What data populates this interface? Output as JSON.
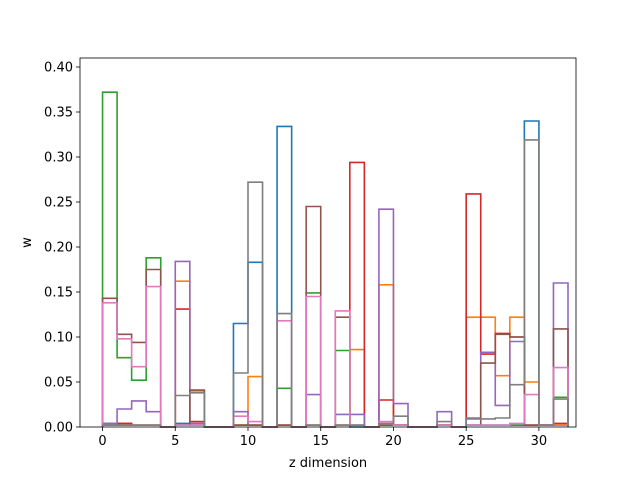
{
  "chart_data": {
    "type": "line",
    "style": "step-histogram",
    "title": "",
    "xlabel": "z dimension",
    "ylabel": "w",
    "xlim": [
      -1.55,
      32.55
    ],
    "ylim": [
      0,
      0.41
    ],
    "xticks": [
      0,
      5,
      10,
      15,
      20,
      25,
      30
    ],
    "yticks": [
      0.0,
      0.05,
      0.1,
      0.15,
      0.2,
      0.25,
      0.3,
      0.35,
      0.4
    ],
    "xtick_labels": [
      "0",
      "5",
      "10",
      "15",
      "20",
      "25",
      "30"
    ],
    "ytick_labels": [
      "0.00",
      "0.05",
      "0.10",
      "0.15",
      "0.20",
      "0.25",
      "0.30",
      "0.35",
      "0.40"
    ],
    "grid": false,
    "legend": "none",
    "bins": [
      0,
      1,
      2,
      3,
      4,
      5,
      6,
      7,
      8,
      9,
      10,
      11,
      12,
      13,
      14,
      15,
      16,
      17,
      18,
      19,
      20,
      21,
      22,
      23,
      24,
      25,
      26,
      27,
      28,
      29,
      30,
      31
    ],
    "series": [
      {
        "color": "#1f77b4",
        "values": [
          0.004,
          0.004,
          0.002,
          0.002,
          0,
          0.004,
          0.002,
          0,
          0,
          0.115,
          0.183,
          0,
          0.334,
          0,
          0.002,
          0,
          0.002,
          0,
          0,
          0.002,
          0.002,
          0,
          0,
          0.002,
          0,
          0.002,
          0.002,
          0.002,
          0.002,
          0.34,
          0.002,
          0.002
        ]
      },
      {
        "color": "#ff7f0e",
        "values": [
          0.002,
          0.004,
          0.002,
          0.002,
          0,
          0.162,
          0.04,
          0,
          0,
          0.002,
          0.056,
          0,
          0.002,
          0,
          0.002,
          0,
          0.002,
          0.086,
          0,
          0.158,
          0.002,
          0,
          0,
          0.002,
          0,
          0.122,
          0.122,
          0.057,
          0.122,
          0.05,
          0.002,
          0.002
        ]
      },
      {
        "color": "#2ca02c",
        "values": [
          0.372,
          0.077,
          0.052,
          0.188,
          0,
          0.002,
          0.002,
          0,
          0,
          0.002,
          0.002,
          0,
          0.043,
          0,
          0.149,
          0,
          0.085,
          0.002,
          0,
          0.002,
          0.002,
          0,
          0,
          0.002,
          0,
          0.002,
          0.002,
          0.002,
          0.002,
          0.002,
          0.002,
          0.033
        ]
      },
      {
        "color": "#d62728",
        "values": [
          0.002,
          0.004,
          0.002,
          0.002,
          0,
          0.131,
          0.006,
          0,
          0,
          0.002,
          0.002,
          0,
          0.002,
          0,
          0.002,
          0,
          0.002,
          0.294,
          0,
          0.03,
          0.002,
          0,
          0,
          0.002,
          0,
          0.259,
          0.081,
          0.104,
          0.1,
          0.002,
          0.002,
          0.004
        ]
      },
      {
        "color": "#9467bd",
        "values": [
          0.004,
          0.02,
          0.029,
          0.017,
          0,
          0.184,
          0.004,
          0,
          0,
          0.017,
          0.002,
          0,
          0.002,
          0,
          0.036,
          0,
          0.014,
          0.014,
          0,
          0.242,
          0.026,
          0,
          0,
          0.017,
          0,
          0.01,
          0.083,
          0.024,
          0.095,
          0.002,
          0.002,
          0.16
        ]
      },
      {
        "color": "#8c564b",
        "values": [
          0.143,
          0.103,
          0.094,
          0.175,
          0,
          0.002,
          0.041,
          0,
          0,
          0.002,
          0.002,
          0,
          0.002,
          0,
          0.245,
          0,
          0.122,
          0.002,
          0,
          0.002,
          0.002,
          0,
          0,
          0.002,
          0,
          0.002,
          0.071,
          0.103,
          0.1,
          0.002,
          0.002,
          0.109
        ]
      },
      {
        "color": "#e377c2",
        "values": [
          0.138,
          0.098,
          0.067,
          0.156,
          0,
          0.002,
          0.002,
          0,
          0,
          0.012,
          0.006,
          0,
          0.118,
          0,
          0.145,
          0,
          0.129,
          0.002,
          0,
          0.006,
          0.002,
          0,
          0,
          0.002,
          0,
          0.002,
          0.002,
          0.002,
          0.004,
          0.036,
          0.002,
          0.066
        ]
      },
      {
        "color": "#7f7f7f",
        "values": [
          0.002,
          0.002,
          0.002,
          0.002,
          0,
          0.035,
          0.038,
          0,
          0,
          0.06,
          0.272,
          0,
          0.126,
          0,
          0.002,
          0,
          0.002,
          0.002,
          0,
          0.004,
          0.012,
          0,
          0,
          0.006,
          0,
          0.009,
          0.009,
          0.01,
          0.047,
          0.319,
          0.002,
          0.031
        ]
      }
    ]
  }
}
